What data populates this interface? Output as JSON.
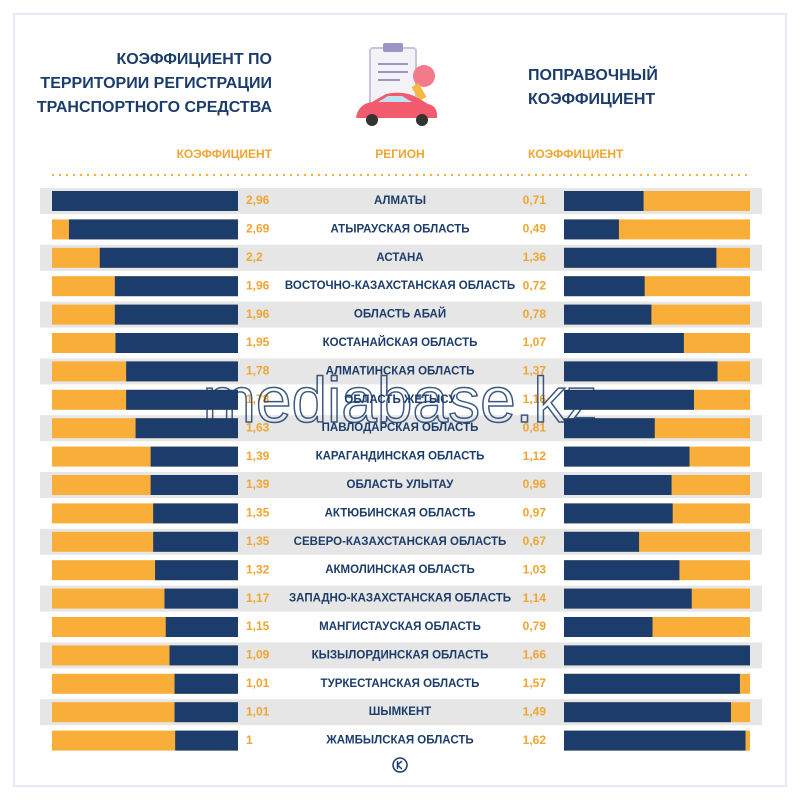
{
  "header": {
    "left_title": [
      "КОЭФФИЦИЕНТ ПО",
      "ТЕРРИТОРИИ РЕГИСТРАЦИИ",
      "ТРАНСПОРТНОГО СРЕДСТВА"
    ],
    "right_title": [
      "ПОПРАВОЧНЫЙ",
      "КОЭФФИЦИЕНТ"
    ],
    "watermark": "mediabase.kz"
  },
  "chart_data": {
    "type": "bar",
    "orientation": "horizontal",
    "category_label": "РЕГИОН",
    "track_color": "#f9ae3a",
    "stripe_color": "#e6e6e6",
    "categories": [
      "АЛМАТЫ",
      "АТЫРАУСКАЯ ОБЛАСТЬ",
      "АСТАНА",
      "ВОСТОЧНО-КАЗАХСТАНСКАЯ ОБЛАСТЬ",
      "ОБЛАСТЬ АБАЙ",
      "КОСТАНАЙСКАЯ ОБЛАСТЬ",
      "АЛМАТИНСКАЯ ОБЛАСТЬ",
      "ОБЛАСТЬ ЖЕТЫСУ",
      "ПАВЛОДАРСКАЯ ОБЛАСТЬ",
      "КАРАГАНДИНСКАЯ ОБЛАСТЬ",
      "ОБЛАСТЬ УЛЫТАУ",
      "АКТЮБИНСКАЯ ОБЛАСТЬ",
      "СЕВЕРО-КАЗАХСТАНСКАЯ ОБЛАСТЬ",
      "АКМОЛИНСКАЯ ОБЛАСТЬ",
      "ЗАПАДНО-КАЗАХСТАНСКАЯ ОБЛАСТЬ",
      "МАНГИСТАУСКАЯ ОБЛАСТЬ",
      "КЫЗЫЛОРДИНСКАЯ ОБЛАСТЬ",
      "ТУРКЕСТАНСКАЯ ОБЛАСТЬ",
      "ШЫМКЕНТ",
      "ЖАМБЫЛСКАЯ ОБЛАСТЬ"
    ],
    "series": [
      {
        "name": "КОЭФФИЦИЕНТ",
        "color": "#1c3d6b",
        "xlim": [
          0,
          2.96
        ],
        "reversed": true,
        "values": [
          2.96,
          2.69,
          2.2,
          1.96,
          1.96,
          1.95,
          1.78,
          1.78,
          1.63,
          1.39,
          1.39,
          1.35,
          1.35,
          1.32,
          1.17,
          1.15,
          1.09,
          1.01,
          1.01,
          1
        ],
        "value_labels": [
          "2,96",
          "2,69",
          "2,2",
          "1,96",
          "1,96",
          "1,95",
          "1,78",
          "1,78",
          "1,63",
          "1,39",
          "1,39",
          "1,35",
          "1,35",
          "1,32",
          "1,17",
          "1,15",
          "1,09",
          "1,01",
          "1,01",
          "1"
        ]
      },
      {
        "name": "КОЭФФИЦИЕНТ",
        "color": "#1c3d6b",
        "xlim": [
          0,
          1.66
        ],
        "reversed": false,
        "values": [
          0.71,
          0.49,
          1.36,
          0.72,
          0.78,
          1.07,
          1.37,
          1.16,
          0.81,
          1.12,
          0.96,
          0.97,
          0.67,
          1.03,
          1.14,
          0.79,
          1.66,
          1.57,
          1.49,
          1.62
        ],
        "value_labels": [
          "0,71",
          "0,49",
          "1,36",
          "0,72",
          "0,78",
          "1,07",
          "1,37",
          "1,16",
          "0,81",
          "1,12",
          "0,96",
          "0,97",
          "0,67",
          "1,03",
          "1,14",
          "0,79",
          "1,66",
          "1,57",
          "1,49",
          "1,62"
        ]
      }
    ]
  }
}
